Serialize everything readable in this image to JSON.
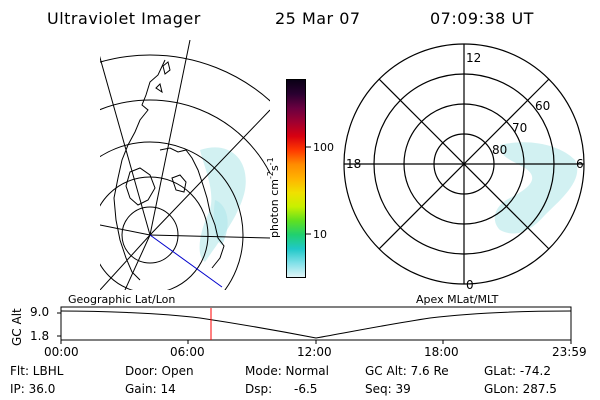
{
  "header": {
    "instrument": "Ultraviolet Imager",
    "date": "25 Mar 07",
    "time": "07:09:38 UT"
  },
  "colorbar": {
    "label": "photon cm",
    "exp1": "-2",
    "label2": "s",
    "exp2": "-1",
    "ticks": [
      "100",
      "10"
    ],
    "gradient": [
      "#0a0016",
      "#2a0030",
      "#6a0040",
      "#a00030",
      "#d80010",
      "#ff3a00",
      "#ff8c00",
      "#ffb300",
      "#f0e000",
      "#c8f000",
      "#60e020",
      "#20d070",
      "#20c8c8",
      "#80e0e8",
      "#e0f4f6"
    ]
  },
  "polar_plot": {
    "local_time_labels": [
      "12",
      "18",
      "6",
      "0"
    ],
    "latitude_labels": [
      "60",
      "70",
      "80"
    ]
  },
  "map_labels": {
    "left": "Geographic Lat/Lon",
    "right": "Apex MLat/MLT"
  },
  "timeline": {
    "ylabel": "GC Alt",
    "y_ticks": [
      "9.0",
      "1.8"
    ],
    "x_ticks": [
      "00:00",
      "06:00",
      "12:00",
      "18:00",
      "23:59"
    ],
    "current_time_marker": "07:09"
  },
  "footer": {
    "filter": "Flt: LBHL",
    "door": "Door: Open",
    "mode": "Mode: Normal",
    "gc_alt": "GC Alt: 7.6 Re",
    "glat": "GLat: -74.2",
    "ip": "IP: 36.0",
    "gain": "Gain: 14",
    "dsp": "Dsp:",
    "dsp_value": "-6.5",
    "seq": "Seq: 39",
    "glon": "GLon: 287.5"
  },
  "colors": {
    "orbit_track": "#0000cc",
    "time_marker": "#ff0000",
    "aurora": "#c8eef0"
  }
}
